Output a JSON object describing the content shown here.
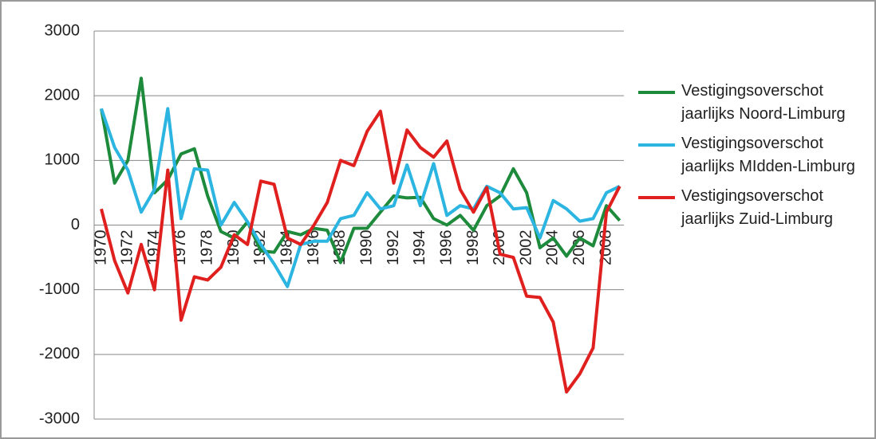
{
  "chart_data": {
    "type": "line",
    "categories": [
      "1970",
      null,
      "1972",
      null,
      "1974",
      null,
      "1976",
      null,
      "1978",
      null,
      "1980",
      null,
      "1982",
      null,
      "1984",
      null,
      "1986",
      null,
      "1988",
      null,
      "1990",
      null,
      "1992",
      null,
      "1994",
      null,
      "1996",
      null,
      "1998",
      null,
      "2000",
      null,
      "2002",
      null,
      "2004",
      null,
      "2006",
      null,
      "2008",
      null
    ],
    "series": [
      {
        "name": "Vestigingsoverschot jaarlijks Noord-Limburg",
        "color": "#1e8a3c",
        "values": [
          1800,
          650,
          1000,
          2270,
          500,
          700,
          1100,
          1180,
          450,
          -100,
          -200,
          50,
          -400,
          -420,
          -100,
          -150,
          -50,
          -80,
          -580,
          -50,
          -50,
          200,
          450,
          420,
          430,
          100,
          0,
          150,
          -80,
          300,
          450,
          870,
          500,
          -350,
          -200,
          -480,
          -200,
          -320,
          300,
          70
        ]
      },
      {
        "name": "Vestigingsoverschot jaarlijks MIdden-Limburg",
        "color": "#2bb5e0",
        "values": [
          1800,
          1200,
          850,
          200,
          550,
          1800,
          100,
          870,
          850,
          0,
          350,
          50,
          -300,
          -600,
          -950,
          -300,
          -250,
          -250,
          100,
          150,
          500,
          250,
          300,
          930,
          300,
          950,
          150,
          300,
          250,
          600,
          500,
          250,
          270,
          -200,
          380,
          250,
          60,
          100,
          500,
          600
        ]
      },
      {
        "name": "Vestigingsoverschot jaarlijks Zuid-Limburg",
        "color": "#e0201e",
        "values": [
          250,
          -550,
          -1050,
          -300,
          -1000,
          850,
          -1470,
          -800,
          -850,
          -650,
          -150,
          -300,
          680,
          630,
          -200,
          -300,
          0,
          350,
          1000,
          920,
          1450,
          1760,
          650,
          1470,
          1200,
          1050,
          1300,
          550,
          200,
          580,
          -450,
          -500,
          -1100,
          -1120,
          -1500,
          -2580,
          -2300,
          -1900,
          200,
          600
        ]
      }
    ],
    "ylim": [
      -3000,
      3000
    ],
    "yticks": [
      -3000,
      -2000,
      -1000,
      0,
      1000,
      2000,
      3000
    ],
    "grid": true,
    "legend": "right"
  }
}
